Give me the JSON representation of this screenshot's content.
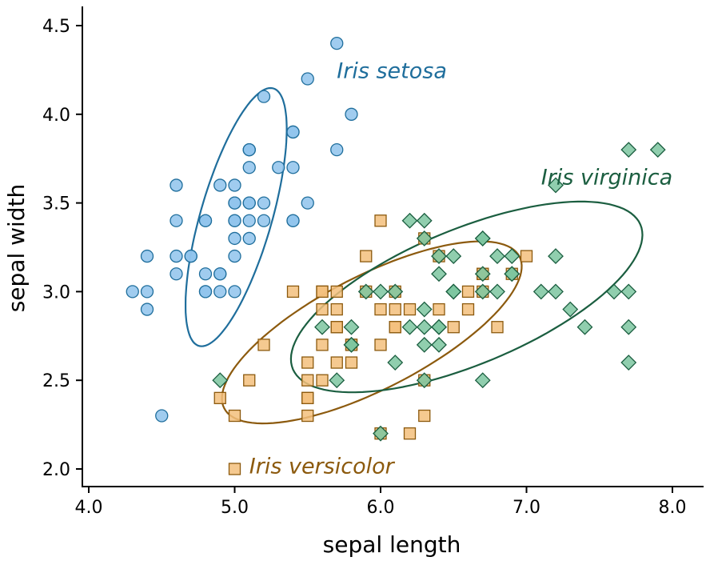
{
  "chart_data": {
    "type": "scatter",
    "xlabel": "sepal length",
    "ylabel": "sepal width",
    "xlim": [
      3.97,
      8.2
    ],
    "ylim": [
      1.94,
      4.6
    ],
    "xticks": [
      4.0,
      5.0,
      6.0,
      7.0,
      8.0
    ],
    "xtick_labels": [
      "4.0",
      "5.0",
      "6.0",
      "7.0",
      "8.0"
    ],
    "yticks": [
      2.0,
      2.5,
      3.0,
      3.5,
      4.0,
      4.5
    ],
    "ytick_labels": [
      "2.0",
      "2.5",
      "3.0",
      "3.5",
      "4.0",
      "4.5"
    ],
    "grid": false,
    "series": [
      {
        "name": "Iris setosa",
        "marker": "circle",
        "color": "#1F6E9C",
        "fill": "#8FC3EC",
        "label": {
          "text": "Iris setosa",
          "anchor": [
            5.7,
            4.25
          ]
        },
        "ellipse": {
          "center": [
            5.01,
            3.42
          ],
          "rx": 0.77,
          "ry": 0.24,
          "angle_deg": 70
        },
        "points": [
          [
            5.1,
            3.5
          ],
          [
            4.9,
            3.0
          ],
          [
            4.7,
            3.2
          ],
          [
            4.6,
            3.1
          ],
          [
            5.0,
            3.6
          ],
          [
            5.4,
            3.9
          ],
          [
            4.6,
            3.4
          ],
          [
            5.0,
            3.4
          ],
          [
            4.4,
            2.9
          ],
          [
            4.9,
            3.1
          ],
          [
            5.4,
            3.7
          ],
          [
            4.8,
            3.4
          ],
          [
            4.8,
            3.0
          ],
          [
            4.3,
            3.0
          ],
          [
            5.8,
            4.0
          ],
          [
            5.7,
            4.4
          ],
          [
            5.4,
            3.9
          ],
          [
            5.1,
            3.5
          ],
          [
            5.7,
            3.8
          ],
          [
            5.1,
            3.8
          ],
          [
            5.4,
            3.4
          ],
          [
            5.1,
            3.7
          ],
          [
            4.6,
            3.6
          ],
          [
            5.1,
            3.3
          ],
          [
            4.8,
            3.4
          ],
          [
            5.0,
            3.0
          ],
          [
            5.0,
            3.4
          ],
          [
            5.2,
            3.5
          ],
          [
            5.2,
            3.4
          ],
          [
            4.7,
            3.2
          ],
          [
            4.8,
            3.1
          ],
          [
            5.4,
            3.4
          ],
          [
            5.2,
            4.1
          ],
          [
            5.5,
            4.2
          ],
          [
            4.9,
            3.1
          ],
          [
            5.0,
            3.2
          ],
          [
            5.5,
            3.5
          ],
          [
            4.9,
            3.6
          ],
          [
            4.4,
            3.0
          ],
          [
            5.1,
            3.4
          ],
          [
            5.0,
            3.5
          ],
          [
            4.5,
            2.3
          ],
          [
            4.4,
            3.2
          ],
          [
            5.0,
            3.5
          ],
          [
            5.1,
            3.8
          ],
          [
            4.8,
            3.0
          ],
          [
            5.1,
            3.8
          ],
          [
            4.6,
            3.2
          ],
          [
            5.3,
            3.7
          ],
          [
            5.0,
            3.3
          ]
        ]
      },
      {
        "name": "Iris versicolor",
        "marker": "square",
        "color": "#8C5A0E",
        "fill": "#F3C07C",
        "label": {
          "text": "Iris versicolor",
          "anchor": [
            5.1,
            2.02
          ]
        },
        "ellipse": {
          "center": [
            5.94,
            2.77
          ],
          "rx": 1.1,
          "ry": 0.33,
          "angle_deg": 22
        },
        "points": [
          [
            7.0,
            3.2
          ],
          [
            6.4,
            3.2
          ],
          [
            6.9,
            3.1
          ],
          [
            5.5,
            2.3
          ],
          [
            6.5,
            2.8
          ],
          [
            5.7,
            2.8
          ],
          [
            6.3,
            3.3
          ],
          [
            4.9,
            2.4
          ],
          [
            6.6,
            2.9
          ],
          [
            5.2,
            2.7
          ],
          [
            5.0,
            2.0
          ],
          [
            5.9,
            3.0
          ],
          [
            6.0,
            2.2
          ],
          [
            6.1,
            2.9
          ],
          [
            5.6,
            2.9
          ],
          [
            6.7,
            3.1
          ],
          [
            5.6,
            3.0
          ],
          [
            5.8,
            2.7
          ],
          [
            6.2,
            2.2
          ],
          [
            5.6,
            2.5
          ],
          [
            5.9,
            3.2
          ],
          [
            6.1,
            2.8
          ],
          [
            6.3,
            2.5
          ],
          [
            6.1,
            2.8
          ],
          [
            6.4,
            2.9
          ],
          [
            6.6,
            3.0
          ],
          [
            6.8,
            2.8
          ],
          [
            6.7,
            3.0
          ],
          [
            6.0,
            2.9
          ],
          [
            5.7,
            2.6
          ],
          [
            5.5,
            2.4
          ],
          [
            5.5,
            2.4
          ],
          [
            5.8,
            2.7
          ],
          [
            6.0,
            2.7
          ],
          [
            5.4,
            3.0
          ],
          [
            6.0,
            3.4
          ],
          [
            6.7,
            3.1
          ],
          [
            6.3,
            2.3
          ],
          [
            5.6,
            3.0
          ],
          [
            5.5,
            2.5
          ],
          [
            5.5,
            2.6
          ],
          [
            6.1,
            3.0
          ],
          [
            5.8,
            2.6
          ],
          [
            5.0,
            2.3
          ],
          [
            5.6,
            2.7
          ],
          [
            5.7,
            3.0
          ],
          [
            5.7,
            2.9
          ],
          [
            6.2,
            2.9
          ],
          [
            5.1,
            2.5
          ],
          [
            5.7,
            2.8
          ]
        ]
      },
      {
        "name": "Iris virginica",
        "marker": "diamond",
        "color": "#1B5E40",
        "fill": "#7DC6A0",
        "label": {
          "text": "Iris virginica",
          "anchor": [
            7.1,
            3.65
          ]
        },
        "ellipse": {
          "center": [
            6.59,
            2.97
          ],
          "rx": 1.26,
          "ry": 0.39,
          "angle_deg": 18
        },
        "points": [
          [
            6.3,
            3.3
          ],
          [
            5.8,
            2.7
          ],
          [
            7.1,
            3.0
          ],
          [
            6.3,
            2.9
          ],
          [
            6.5,
            3.0
          ],
          [
            7.6,
            3.0
          ],
          [
            4.9,
            2.5
          ],
          [
            7.3,
            2.9
          ],
          [
            6.7,
            2.5
          ],
          [
            7.2,
            3.6
          ],
          [
            6.5,
            3.2
          ],
          [
            6.4,
            2.7
          ],
          [
            6.8,
            3.0
          ],
          [
            5.7,
            2.5
          ],
          [
            5.8,
            2.8
          ],
          [
            6.4,
            3.2
          ],
          [
            6.5,
            3.0
          ],
          [
            7.7,
            3.8
          ],
          [
            7.7,
            2.6
          ],
          [
            6.0,
            2.2
          ],
          [
            6.9,
            3.2
          ],
          [
            5.6,
            2.8
          ],
          [
            7.7,
            2.8
          ],
          [
            6.3,
            2.7
          ],
          [
            6.7,
            3.3
          ],
          [
            7.2,
            3.2
          ],
          [
            6.2,
            2.8
          ],
          [
            6.1,
            3.0
          ],
          [
            6.4,
            2.8
          ],
          [
            7.2,
            3.0
          ],
          [
            7.4,
            2.8
          ],
          [
            7.9,
            3.8
          ],
          [
            6.4,
            2.8
          ],
          [
            6.3,
            2.8
          ],
          [
            6.1,
            2.6
          ],
          [
            7.7,
            3.0
          ],
          [
            6.3,
            3.4
          ],
          [
            6.4,
            3.1
          ],
          [
            6.0,
            3.0
          ],
          [
            6.9,
            3.1
          ],
          [
            6.7,
            3.1
          ],
          [
            6.9,
            3.1
          ],
          [
            5.8,
            2.7
          ],
          [
            6.8,
            3.2
          ],
          [
            6.7,
            3.3
          ],
          [
            6.7,
            3.0
          ],
          [
            6.3,
            2.5
          ],
          [
            6.5,
            3.0
          ],
          [
            6.2,
            3.4
          ],
          [
            5.9,
            3.0
          ]
        ]
      }
    ]
  }
}
